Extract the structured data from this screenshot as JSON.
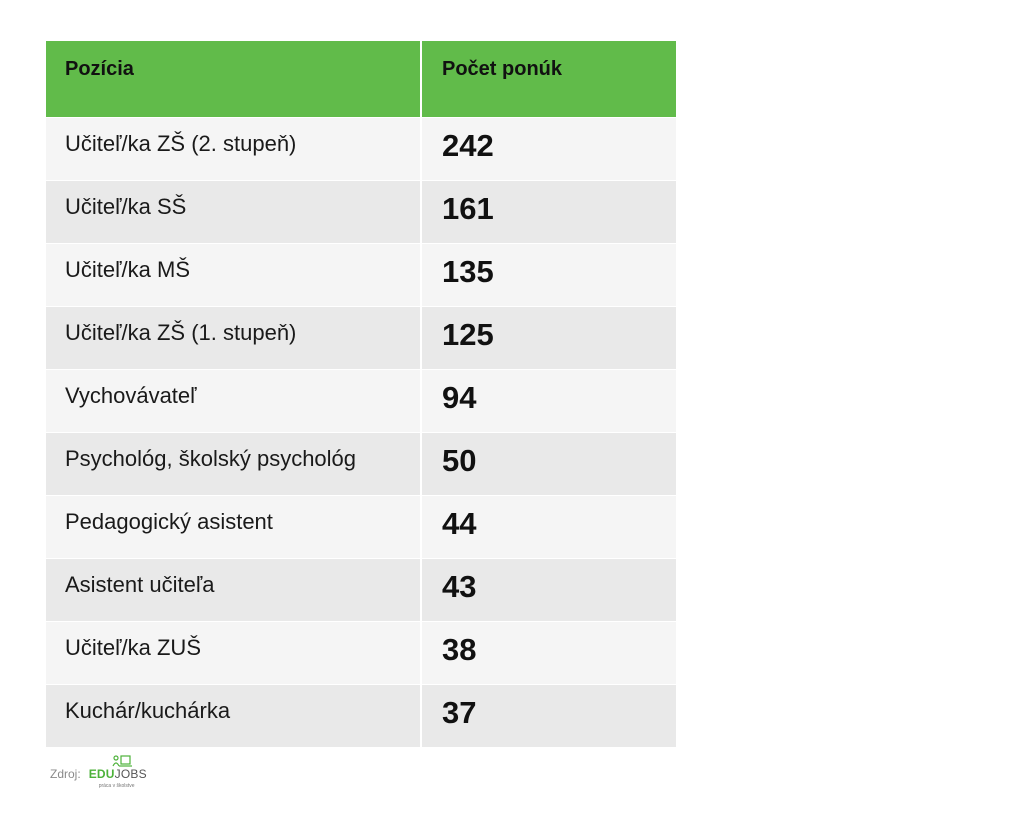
{
  "chart_data": {
    "type": "table",
    "columns": [
      "Pozícia",
      "Počet ponúk"
    ],
    "rows": [
      {
        "position": "Učiteľ/ka ZŠ (2. stupeň)",
        "count": 242
      },
      {
        "position": "Učiteľ/ka SŠ",
        "count": 161
      },
      {
        "position": "Učiteľ/ka MŠ",
        "count": 135
      },
      {
        "position": "Učiteľ/ka ZŠ (1. stupeň)",
        "count": 125
      },
      {
        "position": "Vychovávateľ",
        "count": 94
      },
      {
        "position": "Psychológ, školský psychológ",
        "count": 50
      },
      {
        "position": "Pedagogický asistent",
        "count": 44
      },
      {
        "position": "Asistent učiteľa",
        "count": 43
      },
      {
        "position": "Učiteľ/ka ZUŠ",
        "count": 38
      },
      {
        "position": "Kuchár/kuchárka",
        "count": 37
      }
    ],
    "header_color": "#61bb4a",
    "row_colors": [
      "#f5f5f5",
      "#e9e9e9"
    ]
  },
  "source": {
    "label": "Zdroj:",
    "logo_edu": "EDU",
    "logo_jobs": "JOBS",
    "logo_tagline": "práca v školstve",
    "logo_icon": "person-laptop-icon"
  }
}
